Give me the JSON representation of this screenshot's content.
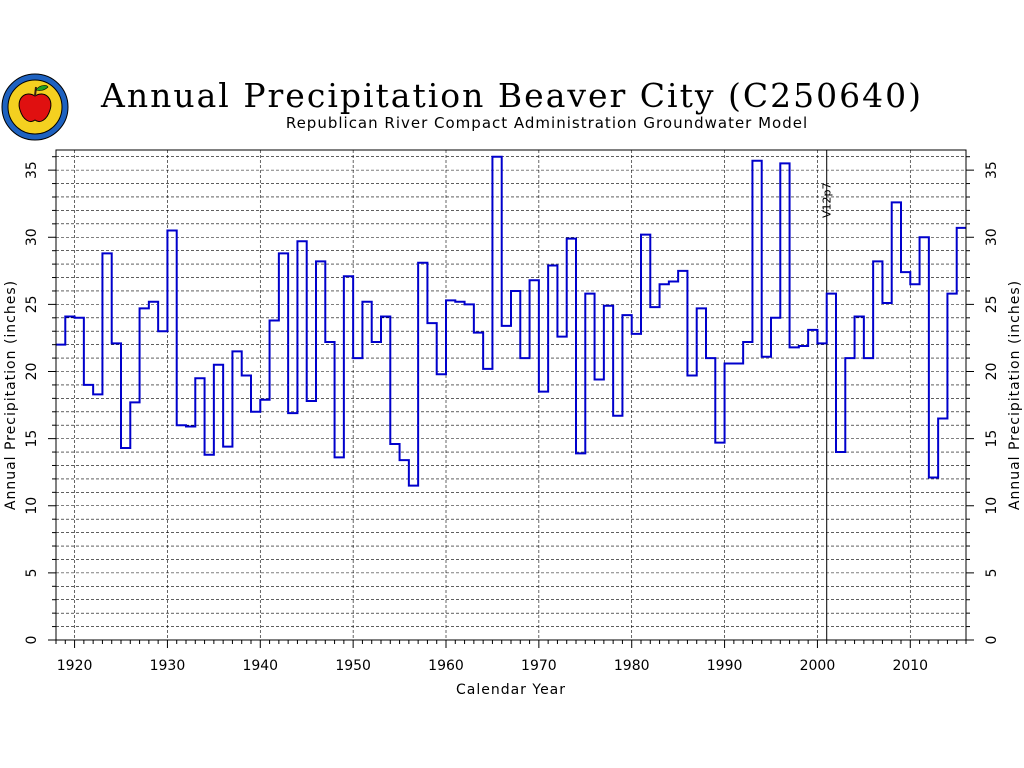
{
  "title": "Annual Precipitation Beaver City (C250640)",
  "subtitle": "Republican River Compact Administration Groundwater Model",
  "colors": {
    "series": "#0000cc",
    "grid": "#000000"
  },
  "chart_data": {
    "type": "line",
    "step": true,
    "xlabel": "Calendar Year",
    "ylabel": "Annual Precipitation (inches)",
    "xlim": [
      1918,
      2016
    ],
    "ylim": [
      0,
      36.5
    ],
    "x_ticks": [
      1920,
      1930,
      1940,
      1950,
      1960,
      1970,
      1980,
      1990,
      2000,
      2010
    ],
    "y_ticks": [
      0,
      5,
      10,
      15,
      20,
      25,
      30,
      35
    ],
    "grid": true,
    "annotations": [
      {
        "text": "V12p7",
        "x": 2001
      }
    ],
    "series": [
      {
        "x": [
          1918,
          1919,
          1920,
          1921,
          1922,
          1923,
          1924,
          1925,
          1926,
          1927,
          1928,
          1929,
          1930,
          1931,
          1932,
          1933,
          1934,
          1935,
          1936,
          1937,
          1938,
          1939,
          1940,
          1941,
          1942,
          1943,
          1944,
          1945,
          1946,
          1947,
          1948,
          1949,
          1950,
          1951,
          1952,
          1953,
          1954,
          1955,
          1956,
          1957,
          1958,
          1959,
          1960,
          1961,
          1962,
          1963,
          1964,
          1965,
          1966,
          1967,
          1968,
          1969,
          1970,
          1971,
          1972,
          1973,
          1974,
          1975,
          1976,
          1977,
          1978,
          1979,
          1980,
          1981,
          1982,
          1983,
          1984,
          1985,
          1986,
          1987,
          1988,
          1989,
          1990,
          1991,
          1992,
          1993,
          1994,
          1995,
          1996,
          1997,
          1998,
          1999,
          2000,
          2001,
          2002,
          2003,
          2004,
          2005,
          2006,
          2007,
          2008,
          2009,
          2010,
          2011,
          2012,
          2013,
          2014,
          2015
        ],
        "values": [
          22.0,
          24.1,
          24.0,
          19.0,
          18.3,
          28.8,
          22.1,
          14.3,
          17.7,
          24.7,
          25.2,
          23.0,
          30.5,
          16.0,
          15.9,
          19.5,
          13.8,
          20.5,
          14.4,
          21.5,
          19.7,
          17.0,
          17.9,
          23.8,
          28.8,
          16.9,
          29.7,
          17.8,
          28.2,
          22.2,
          13.6,
          27.1,
          21.0,
          25.2,
          22.2,
          24.1,
          14.6,
          13.4,
          11.5,
          28.1,
          23.6,
          19.8,
          25.3,
          25.2,
          25.0,
          22.9,
          20.2,
          36.0,
          23.4,
          26.0,
          21.0,
          26.8,
          18.5,
          27.9,
          22.6,
          29.9,
          13.9,
          25.8,
          19.4,
          24.9,
          16.7,
          24.2,
          22.8,
          30.2,
          24.8,
          26.5,
          26.7,
          27.5,
          19.7,
          24.7,
          21.0,
          14.7,
          20.6,
          20.6,
          22.2,
          35.7,
          21.1,
          24.0,
          35.5,
          21.8,
          21.9,
          23.1,
          22.1,
          25.8,
          14.0,
          21.0,
          24.1,
          21.0,
          28.2,
          25.1,
          32.6,
          27.4,
          26.5,
          30.0,
          12.1,
          16.5,
          25.8,
          30.7
        ]
      }
    ]
  }
}
